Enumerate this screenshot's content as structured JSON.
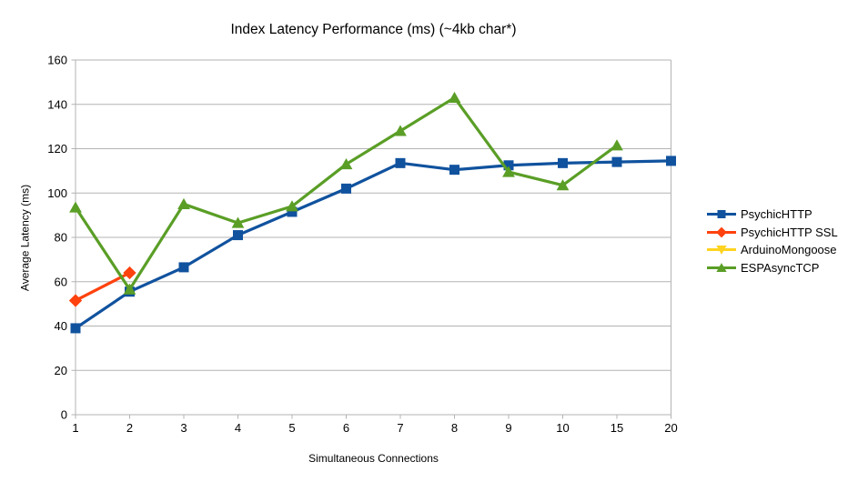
{
  "title": "Index Latency Performance (ms) (~4kb char*)",
  "chart_data": {
    "type": "line",
    "title": "Index Latency Performance (ms) (~4kb char*)",
    "xlabel": "Simultaneous Connections",
    "ylabel": "Average Latency (ms)",
    "categories": [
      "1",
      "2",
      "3",
      "4",
      "5",
      "6",
      "7",
      "8",
      "9",
      "10",
      "15",
      "20"
    ],
    "ylim": [
      0,
      160
    ],
    "ytick_step": 20,
    "grid": "horizontal",
    "legend_position": "right",
    "colors": {
      "grid_line": "#b3b3b3",
      "axis_line": "#b3b3b3",
      "background": "#ffffff",
      "text": "#000000"
    },
    "series": [
      {
        "name": "PsychicHTTP",
        "color": "#10529e",
        "marker": "square",
        "values": [
          39,
          55.5,
          66.5,
          81,
          91.5,
          102,
          113.5,
          110.5,
          112.5,
          113.5,
          114,
          114.5
        ]
      },
      {
        "name": "PsychicHTTP SSL",
        "color": "#ff420e",
        "marker": "diamond",
        "values": [
          51.5,
          64,
          null,
          null,
          null,
          null,
          null,
          null,
          null,
          null,
          null,
          null
        ]
      },
      {
        "name": "ArduinoMongoose",
        "color": "#ffd320",
        "marker": "triangle-down",
        "values": [
          null,
          null,
          null,
          null,
          null,
          null,
          null,
          null,
          null,
          null,
          null,
          null
        ]
      },
      {
        "name": "ESPAsyncTCP",
        "color": "#5a9e26",
        "marker": "triangle-up",
        "values": [
          93.5,
          56.5,
          95,
          86.5,
          94,
          113,
          128,
          143,
          109.5,
          103.5,
          121.5,
          null
        ]
      }
    ]
  }
}
